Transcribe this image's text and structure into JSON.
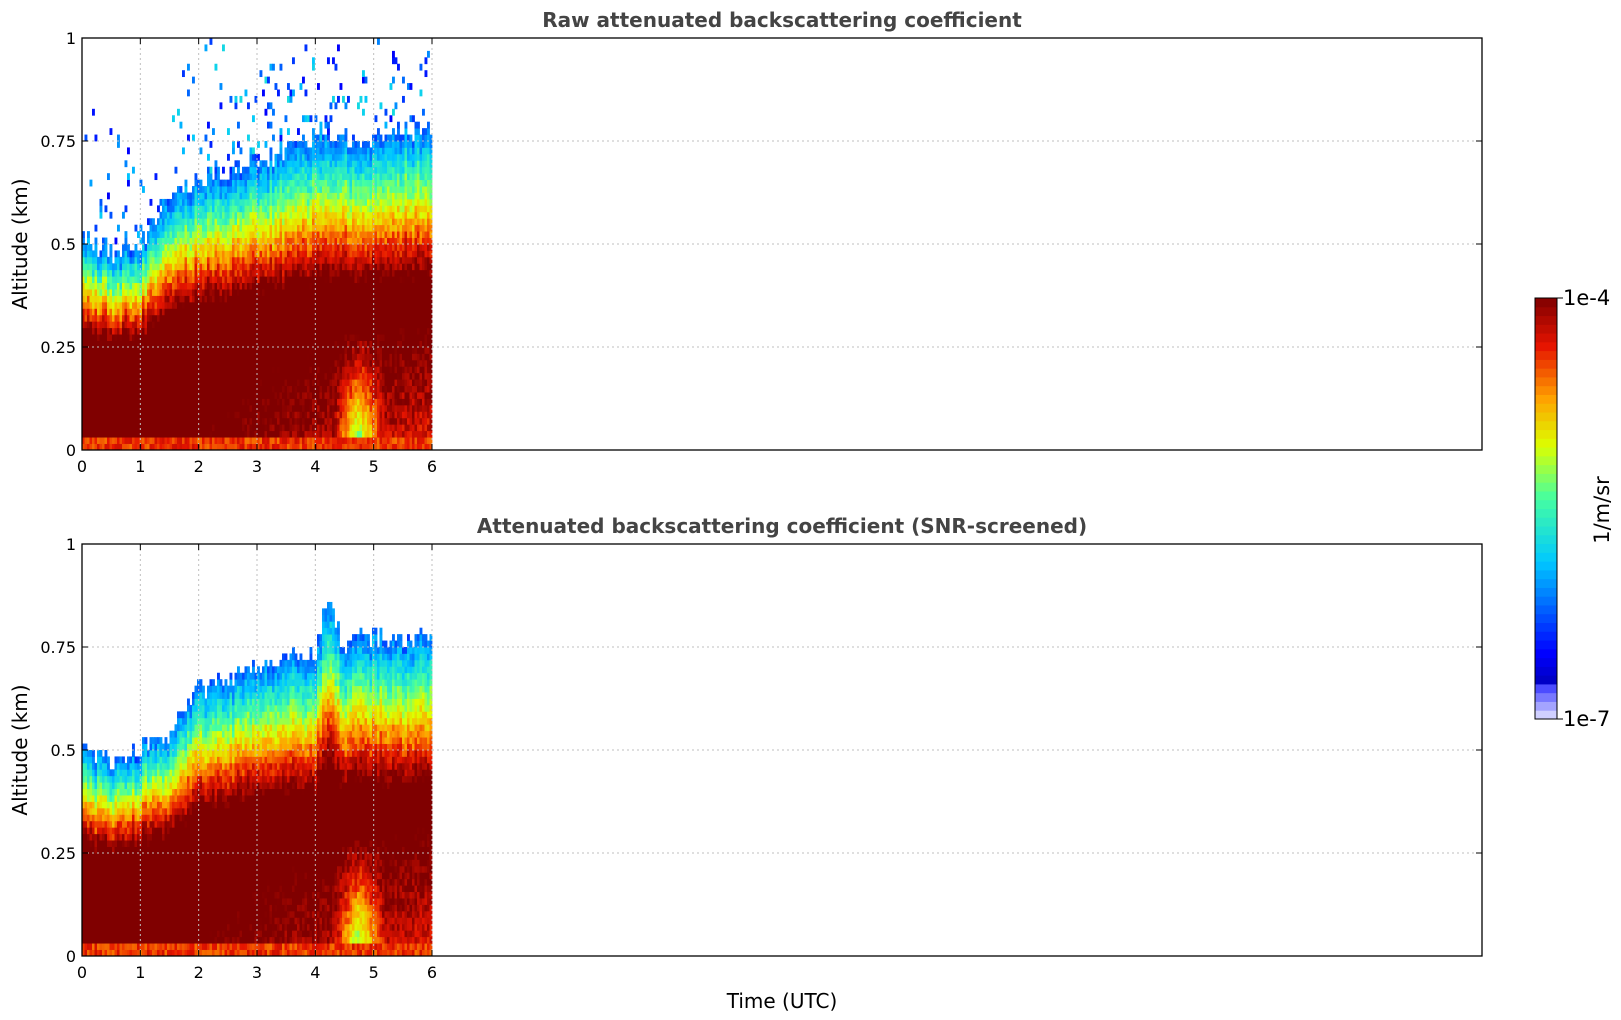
{
  "figure": {
    "xlabel": "Time (UTC)",
    "colorbar": {
      "label": "1/m/sr",
      "max_label": "1e-4",
      "min_label": "1e-7",
      "max": 0.0001,
      "min": 1e-07,
      "scale": "log",
      "colormap": "jet",
      "colors": [
        "#e6e6ff",
        "#c8c8ff",
        "#9696ff",
        "#0000ff",
        "#0080ff",
        "#00e6ff",
        "#00ff80",
        "#80ff00",
        "#ffff00",
        "#ffa500",
        "#ff4000",
        "#cc0000",
        "#800000"
      ]
    }
  },
  "chart_data": [
    {
      "type": "heatmap",
      "title": "Raw attenuated backscattering coefficient",
      "xlabel": "",
      "ylabel": "Altitude (km)",
      "xlim": [
        0,
        24
      ],
      "ylim": [
        0,
        1
      ],
      "x_ticks": [
        0,
        1,
        2,
        3,
        4,
        5,
        6
      ],
      "x_tick_labels": [
        "0",
        "1",
        "2",
        "3",
        "4",
        "5",
        "6"
      ],
      "y_ticks": [
        0,
        0.25,
        0.5,
        0.75,
        1
      ],
      "y_tick_labels": [
        "0",
        "0.25",
        "0.5",
        "0.75",
        "1"
      ],
      "grid": true,
      "data_time_range": [
        0,
        6
      ],
      "signal_top_km": [
        [
          0,
          0.52
        ],
        [
          0.5,
          0.48
        ],
        [
          1,
          0.5
        ],
        [
          1.5,
          0.6
        ],
        [
          2,
          0.66
        ],
        [
          2.5,
          0.68
        ],
        [
          3,
          0.7
        ],
        [
          3.5,
          0.72
        ],
        [
          4,
          0.76
        ],
        [
          4.5,
          0.76
        ],
        [
          5,
          0.76
        ],
        [
          5.5,
          0.78
        ],
        [
          6,
          0.78
        ]
      ],
      "max_backscatter_layer_km": [
        [
          0,
          0.15
        ],
        [
          1,
          0.2
        ],
        [
          2,
          0.28
        ],
        [
          3,
          0.35
        ],
        [
          4,
          0.4
        ],
        [
          5,
          0.42
        ],
        [
          6,
          0.42
        ]
      ],
      "low_signal_region": {
        "time": [
          4.3,
          5.2
        ],
        "altitude_km": [
          0,
          0.3
        ]
      },
      "noise_speckle": true,
      "screened": false
    },
    {
      "type": "heatmap",
      "title": "Attenuated backscattering coefficient (SNR-screened)",
      "xlabel": "Time (UTC)",
      "ylabel": "Altitude (km)",
      "xlim": [
        0,
        24
      ],
      "ylim": [
        0,
        1
      ],
      "x_ticks": [
        0,
        1,
        2,
        3,
        4,
        5,
        6
      ],
      "x_tick_labels": [
        "0",
        "1",
        "2",
        "3",
        "4",
        "5",
        "6"
      ],
      "y_ticks": [
        0,
        0.25,
        0.5,
        0.75,
        1
      ],
      "y_tick_labels": [
        "0",
        "0.25",
        "0.5",
        "0.75",
        "1"
      ],
      "grid": true,
      "data_time_range": [
        0,
        6
      ],
      "signal_top_km": [
        [
          0,
          0.51
        ],
        [
          0.5,
          0.46
        ],
        [
          1,
          0.5
        ],
        [
          1.5,
          0.55
        ],
        [
          2,
          0.65
        ],
        [
          2.5,
          0.68
        ],
        [
          3,
          0.7
        ],
        [
          3.5,
          0.72
        ],
        [
          4,
          0.74
        ],
        [
          4.2,
          0.86
        ],
        [
          4.5,
          0.76
        ],
        [
          5,
          0.78
        ],
        [
          5.5,
          0.76
        ],
        [
          6,
          0.78
        ]
      ],
      "max_backscatter_layer_km": [
        [
          0,
          0.15
        ],
        [
          1,
          0.2
        ],
        [
          2,
          0.28
        ],
        [
          3,
          0.35
        ],
        [
          4,
          0.4
        ],
        [
          5,
          0.42
        ],
        [
          6,
          0.42
        ]
      ],
      "low_signal_region": {
        "time": [
          4.3,
          5.2
        ],
        "altitude_km": [
          0,
          0.3
        ]
      },
      "noise_speckle": false,
      "screened": true
    }
  ]
}
